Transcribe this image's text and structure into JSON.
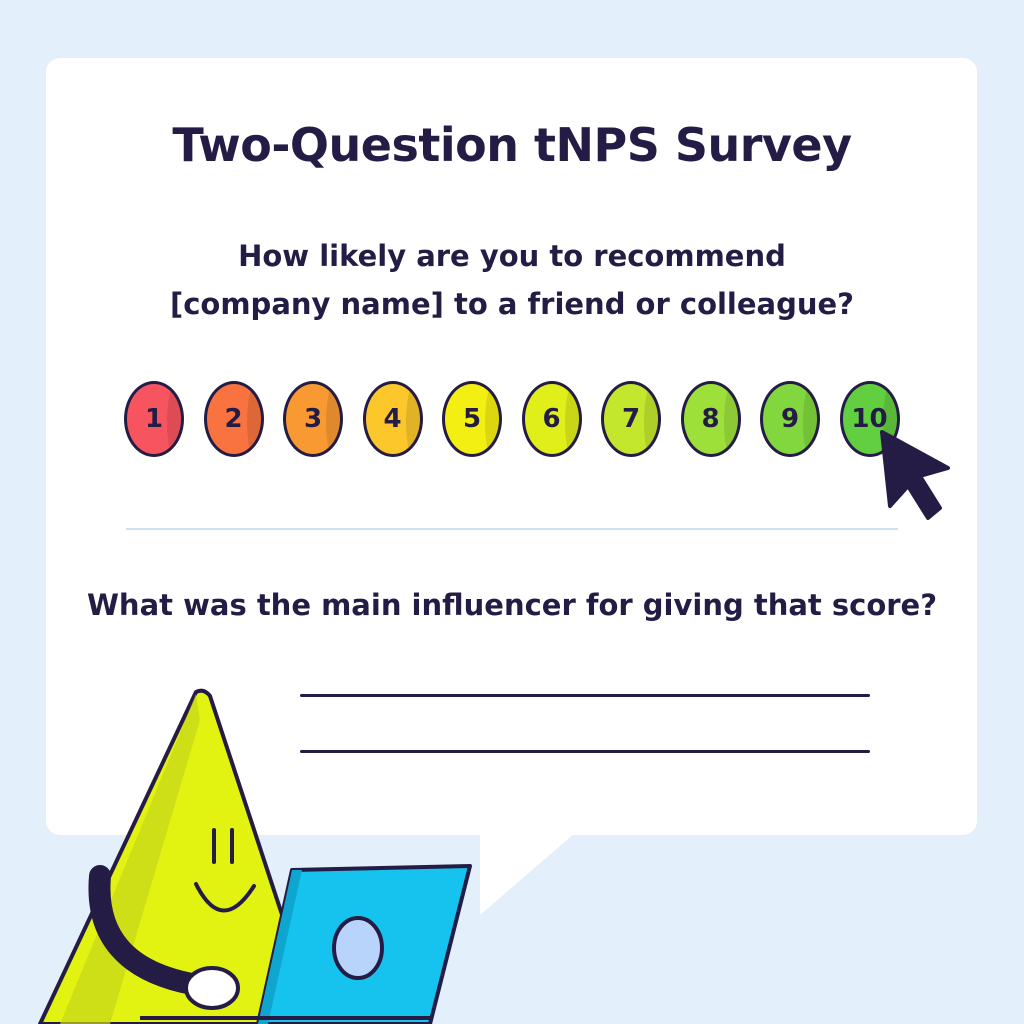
{
  "survey": {
    "title": "Two-Question tNPS Survey",
    "question1": {
      "line1": "How likely are you to recommend",
      "line2": "[company name] to a friend or colleague?"
    },
    "scale": [
      {
        "label": "1",
        "color": "#f6545f"
      },
      {
        "label": "2",
        "color": "#f8733f"
      },
      {
        "label": "3",
        "color": "#f99932"
      },
      {
        "label": "4",
        "color": "#fbc72a"
      },
      {
        "label": "5",
        "color": "#f4ef12"
      },
      {
        "label": "6",
        "color": "#e0ee1a"
      },
      {
        "label": "7",
        "color": "#c2e72c"
      },
      {
        "label": "8",
        "color": "#9de03a"
      },
      {
        "label": "9",
        "color": "#82d63e"
      },
      {
        "label": "10",
        "color": "#62cf40"
      }
    ],
    "selected": "10",
    "question2": "What was the main influencer for giving that score?"
  },
  "colors": {
    "background": "#e4effc",
    "card": "#ffffff",
    "ink": "#241c45",
    "divider": "#cfe0f3",
    "character": "#e2f312",
    "laptop": "#15c3ee"
  },
  "icons": {
    "cursor": "mouse-pointer-icon",
    "character": "cone-character-illustration",
    "laptop": "laptop-illustration"
  }
}
